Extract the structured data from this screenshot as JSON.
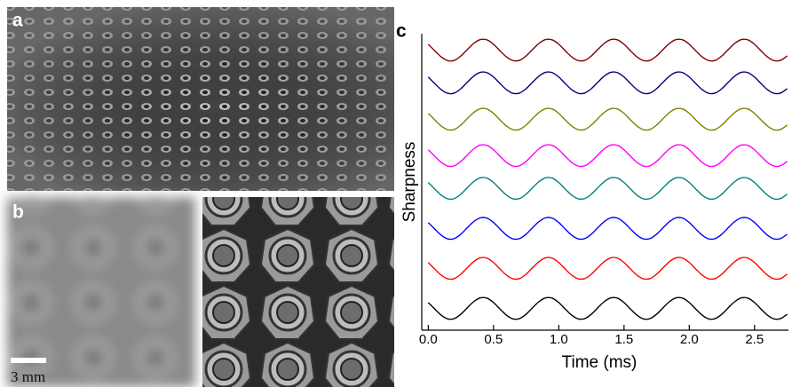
{
  "figure": {
    "labels": [
      "a",
      "b"
    ],
    "scale_bar": "3 mm"
  },
  "chart_data": {
    "type": "line",
    "panel_label": "c",
    "x_label": "Time (ms)",
    "y_label": "Sharpness",
    "xlim": [
      -0.05,
      2.76
    ],
    "ylim": [
      0,
      8.15
    ],
    "xticks": [
      {
        "value": 0,
        "label": "0.0"
      },
      0.5,
      {
        "value": 1,
        "label": "1.0"
      },
      1.5,
      {
        "value": 2,
        "label": "2.0"
      },
      2.5
    ],
    "x": [
      0,
      0.05,
      0.1,
      0.15,
      0.2,
      0.25,
      0.3,
      0.35,
      0.4,
      0.45,
      0.5,
      0.55,
      0.6,
      0.65,
      0.7,
      0.75,
      0.8,
      0.85,
      0.9,
      0.95,
      1,
      1.05,
      1.1,
      1.15,
      1.2,
      1.25,
      1.3,
      1.35,
      1.4,
      1.45,
      1.5,
      1.55,
      1.6,
      1.65,
      1.7,
      1.75,
      1.8,
      1.85,
      1.9,
      1.95,
      2,
      2.05,
      2.1,
      2.15,
      2.2,
      2.25,
      2.3,
      2.35,
      2.4,
      2.45,
      2.5,
      2.55,
      2.6,
      2.65,
      2.7,
      2.75
    ],
    "series": [
      {
        "color": "#000000",
        "values": [
          0.76,
          0.58,
          0.41,
          0.31,
          0.32,
          0.44,
          0.62,
          0.79,
          0.89,
          0.88,
          0.76,
          0.58,
          0.41,
          0.31,
          0.32,
          0.44,
          0.62,
          0.79,
          0.89,
          0.88,
          0.76,
          0.58,
          0.41,
          0.31,
          0.32,
          0.44,
          0.62,
          0.79,
          0.89,
          0.88,
          0.76,
          0.58,
          0.41,
          0.31,
          0.32,
          0.44,
          0.62,
          0.79,
          0.89,
          0.88,
          0.76,
          0.58,
          0.41,
          0.31,
          0.32,
          0.44,
          0.62,
          0.79,
          0.89,
          0.88,
          0.76,
          0.58,
          0.41,
          0.31,
          0.32,
          0.44
        ]
      },
      {
        "color": "#ff0000",
        "values": [
          1.86,
          1.68,
          1.51,
          1.41,
          1.42,
          1.54,
          1.72,
          1.89,
          1.99,
          1.98,
          1.86,
          1.68,
          1.51,
          1.41,
          1.42,
          1.54,
          1.72,
          1.89,
          1.99,
          1.98,
          1.86,
          1.68,
          1.51,
          1.41,
          1.42,
          1.54,
          1.72,
          1.89,
          1.99,
          1.98,
          1.86,
          1.68,
          1.51,
          1.41,
          1.42,
          1.54,
          1.72,
          1.89,
          1.99,
          1.98,
          1.86,
          1.68,
          1.51,
          1.41,
          1.42,
          1.54,
          1.72,
          1.89,
          1.99,
          1.98,
          1.86,
          1.68,
          1.51,
          1.41,
          1.42,
          1.54
        ]
      },
      {
        "color": "#0000ff",
        "values": [
          2.96,
          2.78,
          2.61,
          2.51,
          2.52,
          2.64,
          2.82,
          2.99,
          3.09,
          3.08,
          2.96,
          2.78,
          2.61,
          2.51,
          2.52,
          2.64,
          2.82,
          2.99,
          3.09,
          3.08,
          2.96,
          2.78,
          2.61,
          2.51,
          2.52,
          2.64,
          2.82,
          2.99,
          3.09,
          3.08,
          2.96,
          2.78,
          2.61,
          2.51,
          2.52,
          2.64,
          2.82,
          2.99,
          3.09,
          3.08,
          2.96,
          2.78,
          2.61,
          2.51,
          2.52,
          2.64,
          2.82,
          2.99,
          3.09,
          3.08,
          2.96,
          2.78,
          2.61,
          2.51,
          2.52,
          2.64
        ]
      },
      {
        "color": "#008080",
        "values": [
          4.06,
          3.88,
          3.71,
          3.61,
          3.62,
          3.74,
          3.92,
          4.09,
          4.19,
          4.18,
          4.06,
          3.88,
          3.71,
          3.61,
          3.62,
          3.74,
          3.92,
          4.09,
          4.19,
          4.18,
          4.06,
          3.88,
          3.71,
          3.61,
          3.62,
          3.74,
          3.92,
          4.09,
          4.19,
          4.18,
          4.06,
          3.88,
          3.71,
          3.61,
          3.62,
          3.74,
          3.92,
          4.09,
          4.19,
          4.18,
          4.06,
          3.88,
          3.71,
          3.61,
          3.62,
          3.74,
          3.92,
          4.09,
          4.19,
          4.18,
          4.06,
          3.88,
          3.71,
          3.61,
          3.62,
          3.74
        ]
      },
      {
        "color": "#ff00ff",
        "values": [
          4.96,
          4.78,
          4.61,
          4.51,
          4.52,
          4.64,
          4.82,
          4.99,
          5.09,
          5.08,
          4.96,
          4.78,
          4.61,
          4.51,
          4.52,
          4.64,
          4.82,
          4.99,
          5.09,
          5.08,
          4.96,
          4.78,
          4.61,
          4.51,
          4.52,
          4.64,
          4.82,
          4.99,
          5.09,
          5.08,
          4.96,
          4.78,
          4.61,
          4.51,
          4.52,
          4.64,
          4.82,
          4.99,
          5.09,
          5.08,
          4.96,
          4.78,
          4.61,
          4.51,
          4.52,
          4.64,
          4.82,
          4.99,
          5.09,
          5.08,
          4.96,
          4.78,
          4.61,
          4.51,
          4.52,
          4.64
        ]
      },
      {
        "color": "#808000",
        "values": [
          5.96,
          5.78,
          5.61,
          5.51,
          5.52,
          5.64,
          5.82,
          5.99,
          6.09,
          6.08,
          5.96,
          5.78,
          5.61,
          5.51,
          5.52,
          5.64,
          5.82,
          5.99,
          6.09,
          6.08,
          5.96,
          5.78,
          5.61,
          5.51,
          5.52,
          5.64,
          5.82,
          5.99,
          6.09,
          6.08,
          5.96,
          5.78,
          5.61,
          5.51,
          5.52,
          5.64,
          5.82,
          5.99,
          6.09,
          6.08,
          5.96,
          5.78,
          5.61,
          5.51,
          5.52,
          5.64,
          5.82,
          5.99,
          6.09,
          6.08,
          5.96,
          5.78,
          5.61,
          5.51,
          5.52,
          5.64
        ]
      },
      {
        "color": "#000080",
        "values": [
          6.96,
          6.78,
          6.61,
          6.51,
          6.52,
          6.64,
          6.82,
          6.99,
          7.09,
          7.08,
          6.96,
          6.78,
          6.61,
          6.51,
          6.52,
          6.64,
          6.82,
          6.99,
          7.09,
          7.08,
          6.96,
          6.78,
          6.61,
          6.51,
          6.52,
          6.64,
          6.82,
          6.99,
          7.09,
          7.08,
          6.96,
          6.78,
          6.61,
          6.51,
          6.52,
          6.64,
          6.82,
          6.99,
          7.09,
          7.08,
          6.96,
          6.78,
          6.61,
          6.51,
          6.52,
          6.64,
          6.82,
          6.99,
          7.09,
          7.08,
          6.96,
          6.78,
          6.61,
          6.51,
          6.52,
          6.64
        ]
      },
      {
        "color": "#800000",
        "values": [
          7.86,
          7.68,
          7.51,
          7.41,
          7.42,
          7.54,
          7.72,
          7.89,
          7.99,
          7.98,
          7.86,
          7.68,
          7.51,
          7.41,
          7.42,
          7.54,
          7.72,
          7.89,
          7.99,
          7.98,
          7.86,
          7.68,
          7.51,
          7.41,
          7.42,
          7.54,
          7.72,
          7.89,
          7.99,
          7.98,
          7.86,
          7.68,
          7.51,
          7.41,
          7.42,
          7.54,
          7.72,
          7.89,
          7.99,
          7.98,
          7.86,
          7.68,
          7.51,
          7.41,
          7.42,
          7.54,
          7.72,
          7.89,
          7.99,
          7.98,
          7.86,
          7.68,
          7.51,
          7.41,
          7.42,
          7.54
        ]
      }
    ]
  }
}
